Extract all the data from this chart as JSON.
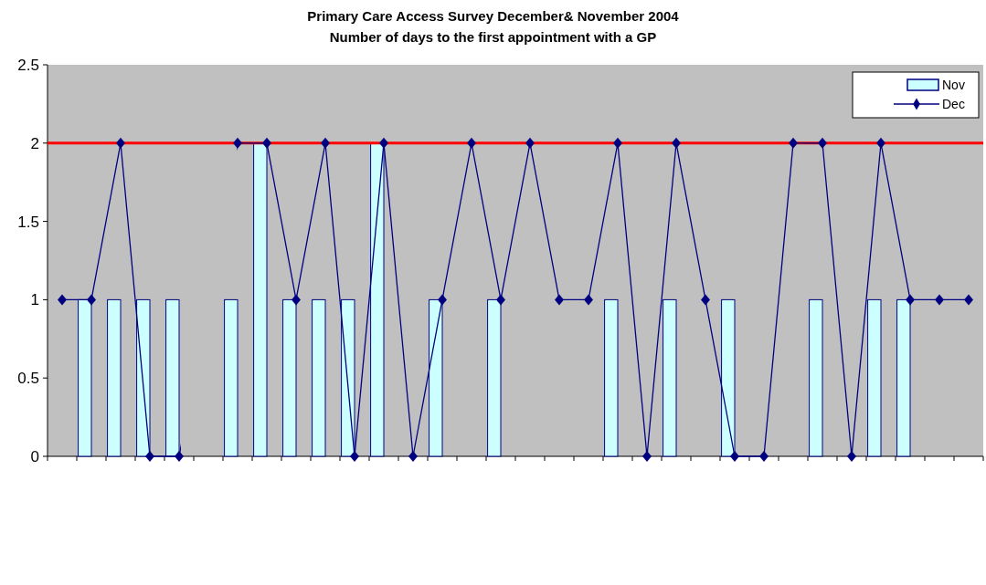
{
  "chart_data": {
    "type": "bar",
    "title": "Primary Care Access Survey December& November 2004",
    "subtitle": "Number of days to the first appointment with a GP",
    "categories": [
      null,
      null,
      null,
      null,
      null,
      null,
      null,
      null,
      null,
      null,
      null,
      null,
      null,
      null,
      null,
      null,
      null,
      null,
      null,
      null,
      null,
      null,
      null,
      null,
      null,
      null,
      null,
      null,
      null,
      null,
      null,
      null
    ],
    "series": [
      {
        "name": "Nov",
        "color": "#ccffff",
        "values": [
          null,
          1,
          1,
          1,
          1,
          null,
          1,
          2,
          1,
          1,
          1,
          2,
          null,
          1,
          null,
          1,
          null,
          null,
          null,
          1,
          null,
          1,
          null,
          1,
          null,
          null,
          1,
          null,
          1,
          1,
          null,
          null
        ]
      },
      {
        "name": "Dec",
        "type": "line",
        "color": "#000080",
        "values": [
          1,
          1,
          2,
          0,
          0,
          null,
          2,
          2,
          1,
          2,
          0,
          2,
          0,
          1,
          2,
          1,
          2,
          1,
          1,
          2,
          0,
          2,
          1,
          0,
          0,
          2,
          2,
          0,
          2,
          1,
          1,
          1
        ]
      }
    ],
    "ylim": [
      0,
      2.5
    ],
    "yticks": [
      0,
      {
        "value": 0.5,
        "label": "0.5"
      },
      1,
      {
        "value": 1.5,
        "label": "1.5"
      },
      2,
      {
        "value": 2.5,
        "label": "2.5"
      }
    ],
    "ref_lines": [
      {
        "axis": "y",
        "value": 2,
        "color": "#ff0000"
      }
    ],
    "legend": "top right",
    "marker": "diamond",
    "grid": false
  }
}
